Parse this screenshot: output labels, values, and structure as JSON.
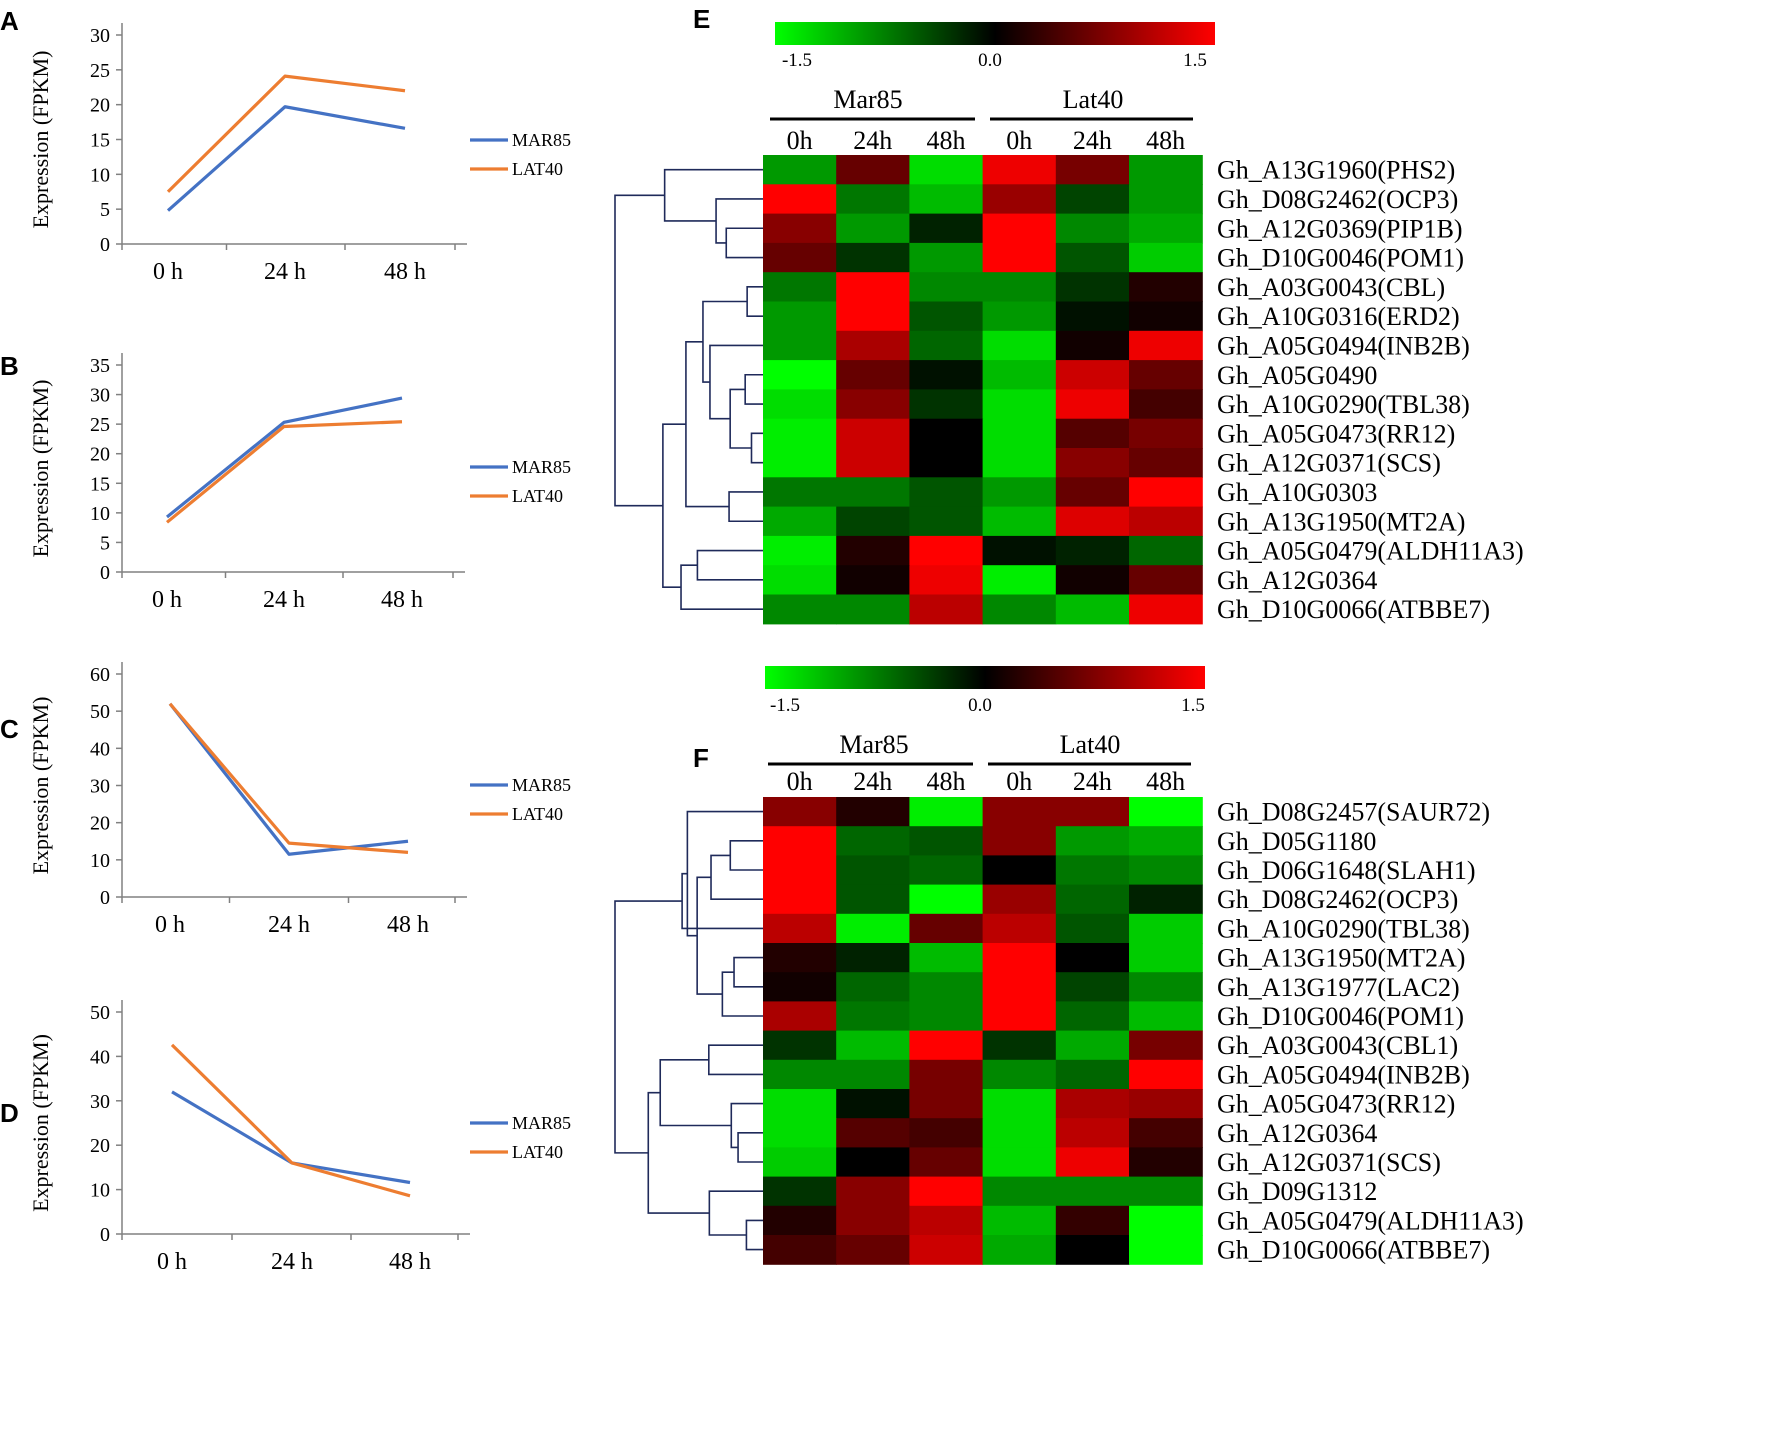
{
  "colors": {
    "mar85": "#4472C4",
    "lat40": "#ED7D31",
    "dendrogram": "#1f2a5a",
    "low": "#00ff00",
    "mid": "#000000",
    "high": "#ff0000"
  },
  "chart_data": [
    {
      "type": "line",
      "panel": "A",
      "categories": [
        "0 h",
        "24 h",
        "48 h"
      ],
      "ylabel": "Expression (FPKM)",
      "ylim": [
        0,
        30
      ],
      "yticks": [
        0,
        5,
        10,
        15,
        20,
        25,
        30
      ],
      "series": [
        {
          "name": "MAR85",
          "values": [
            4.8,
            19.7,
            16.6
          ]
        },
        {
          "name": "LAT40",
          "values": [
            7.5,
            24.1,
            22.0
          ]
        }
      ]
    },
    {
      "type": "line",
      "panel": "B",
      "categories": [
        "0 h",
        "24 h",
        "48 h"
      ],
      "ylabel": "Expression (FPKM)",
      "ylim": [
        0,
        35
      ],
      "yticks": [
        0,
        5,
        10,
        15,
        20,
        25,
        30,
        35
      ],
      "series": [
        {
          "name": "MAR85",
          "values": [
            9.3,
            25.3,
            29.4
          ]
        },
        {
          "name": "LAT40",
          "values": [
            8.4,
            24.6,
            25.4
          ]
        }
      ]
    },
    {
      "type": "line",
      "panel": "C",
      "categories": [
        "0 h",
        "24 h",
        "48 h"
      ],
      "ylabel": "Expression (FPKM)",
      "ylim": [
        0,
        60
      ],
      "yticks": [
        0,
        10,
        20,
        30,
        40,
        50,
        60
      ],
      "series": [
        {
          "name": "MAR85",
          "values": [
            52.0,
            11.5,
            15.0
          ]
        },
        {
          "name": "LAT40",
          "values": [
            52.0,
            14.5,
            12.0
          ]
        }
      ]
    },
    {
      "type": "line",
      "panel": "D",
      "categories": [
        "0 h",
        "24 h",
        "48 h"
      ],
      "ylabel": "Expression (FPKM)",
      "ylim": [
        0,
        50
      ],
      "yticks": [
        0,
        10,
        20,
        30,
        40,
        50
      ],
      "series": [
        {
          "name": "MAR85",
          "values": [
            32.0,
            16.0,
            11.6
          ]
        },
        {
          "name": "LAT40",
          "values": [
            42.6,
            16.0,
            8.6
          ]
        }
      ]
    },
    {
      "type": "heatmap",
      "panel": "E",
      "scale": {
        "min": -1.5,
        "max": 1.5,
        "labels": [
          "-1.5",
          "0.0",
          "1.5"
        ]
      },
      "groups": [
        "Mar85",
        "Lat40"
      ],
      "columns": [
        "0h",
        "24h",
        "48h",
        "0h",
        "24h",
        "48h"
      ],
      "rows": [
        "Gh_A13G1960(PHS2)",
        "Gh_D08G2462(OCP3)",
        "Gh_A12G0369(PIP1B)",
        "Gh_D10G0046(POM1)",
        "Gh_A03G0043(CBL)",
        "Gh_A10G0316(ERD2)",
        "Gh_A05G0494(INB2B)",
        "Gh_A05G0490",
        "Gh_A10G0290(TBL38)",
        "Gh_A05G0473(RR12)",
        "Gh_A12G0371(SCS)",
        "Gh_A10G0303",
        "Gh_A13G1950(MT2A)",
        "Gh_A05G0479(ALDH11A3)",
        "Gh_A12G0364",
        "Gh_D10G0066(ATBBE7)"
      ],
      "values": [
        [
          -0.9,
          0.6,
          -1.3,
          1.4,
          0.7,
          -0.9
        ],
        [
          1.5,
          -0.7,
          -1.1,
          0.9,
          -0.4,
          -0.9
        ],
        [
          0.8,
          -0.9,
          -0.2,
          1.5,
          -0.8,
          -1.0
        ],
        [
          0.6,
          -0.3,
          -0.9,
          1.5,
          -0.5,
          -1.2
        ],
        [
          -0.7,
          1.5,
          -0.8,
          -0.8,
          -0.3,
          0.2
        ],
        [
          -0.9,
          1.5,
          -0.5,
          -0.9,
          -0.1,
          0.1
        ],
        [
          -0.9,
          1.0,
          -0.6,
          -1.3,
          0.1,
          1.4
        ],
        [
          -1.5,
          0.6,
          -0.1,
          -1.1,
          1.2,
          0.6
        ],
        [
          -1.3,
          0.8,
          -0.3,
          -1.3,
          1.4,
          0.4
        ],
        [
          -1.4,
          1.2,
          0.0,
          -1.3,
          0.5,
          0.7
        ],
        [
          -1.4,
          1.2,
          0.0,
          -1.3,
          0.8,
          0.6
        ],
        [
          -0.7,
          -0.7,
          -0.5,
          -0.9,
          0.6,
          1.5
        ],
        [
          -1.0,
          -0.4,
          -0.5,
          -1.1,
          1.3,
          1.1
        ],
        [
          -1.4,
          0.2,
          1.5,
          -0.1,
          -0.2,
          -0.6
        ],
        [
          -1.3,
          0.1,
          1.4,
          -1.4,
          0.1,
          0.6
        ],
        [
          -0.8,
          -0.8,
          1.1,
          -0.8,
          -1.1,
          1.4
        ]
      ]
    },
    {
      "type": "heatmap",
      "panel": "F",
      "scale": {
        "min": -1.5,
        "max": 1.5,
        "labels": [
          "-1.5",
          "0.0",
          "1.5"
        ]
      },
      "groups": [
        "Mar85",
        "Lat40"
      ],
      "columns": [
        "0h",
        "24h",
        "48h",
        "0h",
        "24h",
        "48h"
      ],
      "rows": [
        "Gh_D08G2457(SAUR72)",
        "Gh_D05G1180",
        "Gh_D06G1648(SLAH1)",
        "Gh_D08G2462(OCP3)",
        "Gh_A10G0290(TBL38)",
        "Gh_A13G1950(MT2A)",
        "Gh_A13G1977(LAC2)",
        "Gh_D10G0046(POM1)",
        "Gh_A03G0043(CBL1)",
        "Gh_A05G0494(INB2B)",
        "Gh_A05G0473(RR12)",
        "Gh_A12G0364",
        "Gh_A12G0371(SCS)",
        "Gh_D09G1312",
        "Gh_A05G0479(ALDH11A3)",
        "Gh_D10G0066(ATBBE7)"
      ],
      "values": [
        [
          0.8,
          0.2,
          -1.4,
          0.8,
          0.8,
          -1.5
        ],
        [
          1.5,
          -0.6,
          -0.5,
          0.8,
          -0.9,
          -1.0
        ],
        [
          1.5,
          -0.5,
          -0.6,
          0.0,
          -0.7,
          -0.8
        ],
        [
          1.5,
          -0.5,
          -1.5,
          0.9,
          -0.6,
          -0.2
        ],
        [
          1.1,
          -1.4,
          0.6,
          1.1,
          -0.5,
          -1.2
        ],
        [
          0.2,
          -0.2,
          -1.1,
          1.5,
          0.0,
          -1.2
        ],
        [
          0.1,
          -0.6,
          -0.8,
          1.5,
          -0.4,
          -0.8
        ],
        [
          1.0,
          -0.7,
          -0.8,
          1.5,
          -0.6,
          -1.1
        ],
        [
          -0.3,
          -1.1,
          1.5,
          -0.3,
          -1.0,
          0.7
        ],
        [
          -0.8,
          -0.8,
          0.7,
          -0.8,
          -0.6,
          1.5
        ],
        [
          -1.3,
          -0.1,
          0.7,
          -1.3,
          1.0,
          0.9
        ],
        [
          -1.3,
          0.5,
          0.4,
          -1.3,
          1.1,
          0.4
        ],
        [
          -1.2,
          0.0,
          0.6,
          -1.3,
          1.4,
          0.2
        ],
        [
          -0.3,
          0.8,
          1.5,
          -0.8,
          -0.8,
          -0.8
        ],
        [
          0.2,
          0.8,
          1.1,
          -1.1,
          0.3,
          -1.5
        ],
        [
          0.4,
          0.6,
          1.2,
          -1.0,
          0.0,
          -1.5
        ]
      ]
    }
  ]
}
